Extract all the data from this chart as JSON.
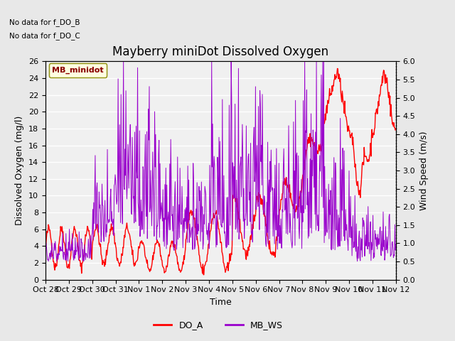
{
  "title": "Mayberry miniDot Dissolved Oxygen",
  "xlabel": "Time",
  "ylabel_left": "Dissolved Oxygen (mg/l)",
  "ylabel_right": "Wind Speed (m/s)",
  "no_data_text_1": "No data for f_DO_B",
  "no_data_text_2": "No data for f_DO_C",
  "legend_box_label": "MB_minidot",
  "legend_entries": [
    "DO_A",
    "MB_WS"
  ],
  "legend_colors": [
    "#ff0000",
    "#9900cc"
  ],
  "ylim_left": [
    0,
    26
  ],
  "ylim_right": [
    0.0,
    6.0
  ],
  "yticks_left": [
    0,
    2,
    4,
    6,
    8,
    10,
    12,
    14,
    16,
    18,
    20,
    22,
    24,
    26
  ],
  "yticks_right": [
    0.0,
    0.5,
    1.0,
    1.5,
    2.0,
    2.5,
    3.0,
    3.5,
    4.0,
    4.5,
    5.0,
    5.5,
    6.0
  ],
  "xtick_labels": [
    "Oct 28",
    "Oct 29",
    "Oct 30",
    "Oct 31",
    "Nov 1",
    "Nov 2",
    "Nov 3",
    "Nov 4",
    "Nov 5",
    "Nov 6",
    "Nov 7",
    "Nov 8",
    "Nov 9",
    "Nov 10",
    "Nov 11",
    "Nov 12"
  ],
  "do_a_color": "#ff0000",
  "mb_ws_color": "#9900cc",
  "background_color": "#e8e8e8",
  "plot_bg_color": "#f0f0f0",
  "grid_color": "#ffffff",
  "title_fontsize": 12,
  "label_fontsize": 9,
  "tick_fontsize": 8,
  "nodata_fontsize": 7.5
}
